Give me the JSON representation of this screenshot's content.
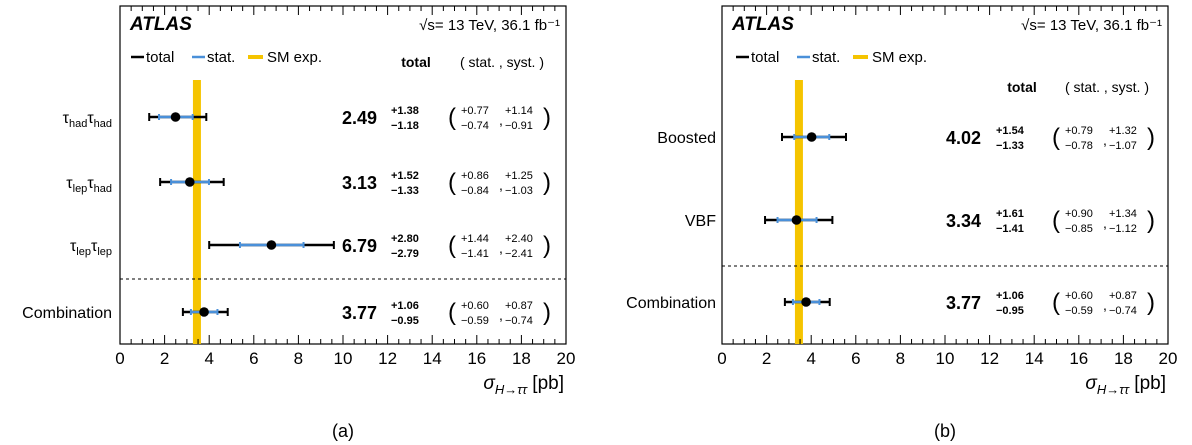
{
  "chart_data": [
    {
      "type": "scatter",
      "panel_label": "(a)",
      "experiment": "ATLAS",
      "sqrt_s_label": "√s",
      "condition": "= 13 TeV, 36.1 fb⁻¹",
      "legend": {
        "total": "total",
        "stat": "stat.",
        "sm": "SM exp."
      },
      "header": {
        "total": "total",
        "stat_syst": "( stat. , syst. )"
      },
      "xlabel": "σ_H→ττ [pb]",
      "xlabel_main": "σ",
      "xlabel_sub": "H→ττ",
      "xlabel_unit": "[pb]",
      "xlim": [
        0,
        20
      ],
      "xticks": [
        "0",
        "2",
        "4",
        "6",
        "8",
        "10",
        "12",
        "14",
        "16",
        "18",
        "20"
      ],
      "sm_expectation": 3.45,
      "rows": [
        {
          "label": "τ",
          "l1": "had",
          "l2": "had",
          "value": 2.49,
          "value_label": "2.49",
          "tot_up": 1.38,
          "tot_down": 1.18,
          "tot_up_label": "+1.38",
          "tot_down_label": "−1.18",
          "stat_up": 0.77,
          "stat_down": 0.74,
          "stat_up_label": "+0.77",
          "stat_down_label": "−0.74",
          "syst_up": 1.14,
          "syst_down": 0.91,
          "syst_up_label": "+1.14",
          "syst_down_label": "−0.91"
        },
        {
          "label": "τ",
          "l1": "lep",
          "l2": "had",
          "value": 3.13,
          "value_label": "3.13",
          "tot_up": 1.52,
          "tot_down": 1.33,
          "tot_up_label": "+1.52",
          "tot_down_label": "−1.33",
          "stat_up": 0.86,
          "stat_down": 0.84,
          "stat_up_label": "+0.86",
          "stat_down_label": "−0.84",
          "syst_up": 1.25,
          "syst_down": 1.03,
          "syst_up_label": "+1.25",
          "syst_down_label": "−1.03"
        },
        {
          "label": "τ",
          "l1": "lep",
          "l2": "lep",
          "value": 6.79,
          "value_label": "6.79",
          "tot_up": 2.8,
          "tot_down": 2.79,
          "tot_up_label": "+2.80",
          "tot_down_label": "−2.79",
          "stat_up": 1.44,
          "stat_down": 1.41,
          "stat_up_label": "+1.44",
          "stat_down_label": "−1.41",
          "syst_up": 2.4,
          "syst_down": 2.41,
          "syst_up_label": "+2.40",
          "syst_down_label": "−2.41"
        },
        {
          "label": "Combination",
          "l1": "",
          "l2": "",
          "value": 3.77,
          "value_label": "3.77",
          "tot_up": 1.06,
          "tot_down": 0.95,
          "tot_up_label": "+1.06",
          "tot_down_label": "−0.95",
          "stat_up": 0.6,
          "stat_down": 0.59,
          "stat_up_label": "+0.60",
          "stat_down_label": "−0.59",
          "syst_up": 0.87,
          "syst_down": 0.74,
          "syst_up_label": "+0.87",
          "syst_down_label": "−0.74"
        }
      ]
    },
    {
      "type": "scatter",
      "panel_label": "(b)",
      "experiment": "ATLAS",
      "sqrt_s_label": "√s",
      "condition": "= 13 TeV, 36.1 fb⁻¹",
      "legend": {
        "total": "total",
        "stat": "stat.",
        "sm": "SM exp."
      },
      "header": {
        "total": "total",
        "stat_syst": "( stat. , syst. )"
      },
      "xlabel": "σ_H→ττ [pb]",
      "xlabel_main": "σ",
      "xlabel_sub": "H→ττ",
      "xlabel_unit": "[pb]",
      "xlim": [
        0,
        20
      ],
      "xticks": [
        "0",
        "2",
        "4",
        "6",
        "8",
        "10",
        "12",
        "14",
        "16",
        "18",
        "20"
      ],
      "sm_expectation": 3.45,
      "rows": [
        {
          "label": "Boosted",
          "l1": "",
          "l2": "",
          "value": 4.02,
          "value_label": "4.02",
          "tot_up": 1.54,
          "tot_down": 1.33,
          "tot_up_label": "+1.54",
          "tot_down_label": "−1.33",
          "stat_up": 0.79,
          "stat_down": 0.78,
          "stat_up_label": "+0.79",
          "stat_down_label": "−0.78",
          "syst_up": 1.32,
          "syst_down": 1.07,
          "syst_up_label": "+1.32",
          "syst_down_label": "−1.07"
        },
        {
          "label": "VBF",
          "l1": "",
          "l2": "",
          "value": 3.34,
          "value_label": "3.34",
          "tot_up": 1.61,
          "tot_down": 1.41,
          "tot_up_label": "+1.61",
          "tot_down_label": "−1.41",
          "stat_up": 0.9,
          "stat_down": 0.85,
          "stat_up_label": "+0.90",
          "stat_down_label": "−0.85",
          "syst_up": 1.34,
          "syst_down": 1.12,
          "syst_up_label": "+1.34",
          "syst_down_label": "−1.12"
        },
        {
          "label": "Combination",
          "l1": "",
          "l2": "",
          "value": 3.77,
          "value_label": "3.77",
          "tot_up": 1.06,
          "tot_down": 0.95,
          "tot_up_label": "+1.06",
          "tot_down_label": "−0.95",
          "stat_up": 0.6,
          "stat_down": 0.59,
          "stat_up_label": "+0.60",
          "stat_down_label": "−0.59",
          "syst_up": 0.87,
          "syst_down": 0.74,
          "syst_up_label": "+0.87",
          "syst_down_label": "−0.74"
        }
      ]
    }
  ],
  "colors": {
    "total": "#000000",
    "stat": "#4a90d9",
    "sm": "#f5c400"
  }
}
